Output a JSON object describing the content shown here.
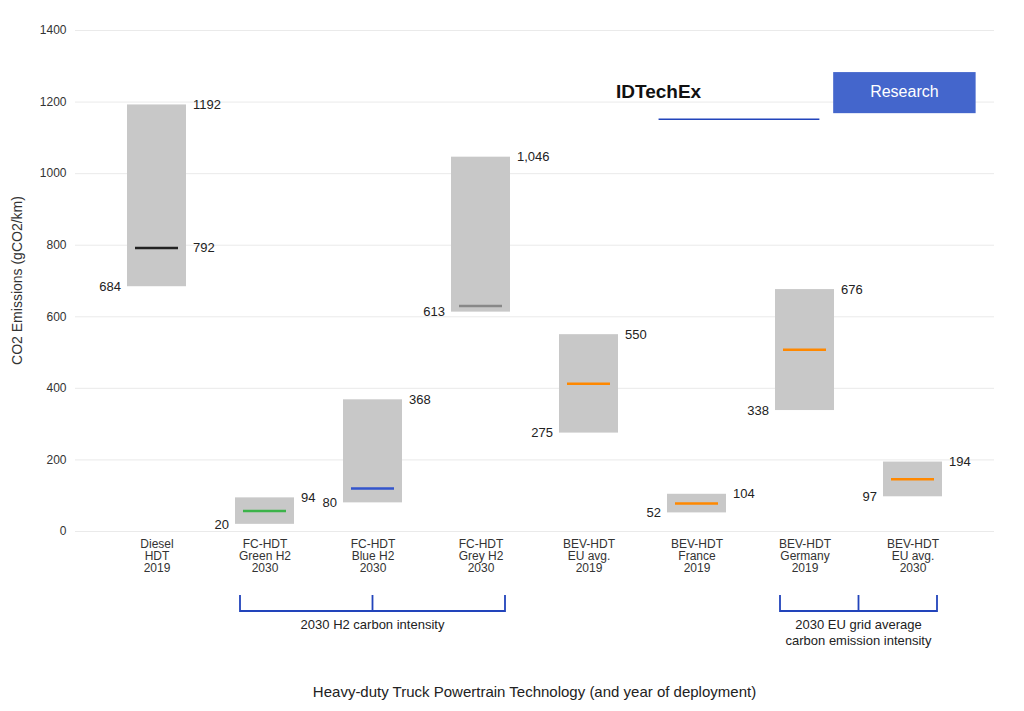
{
  "chart_data": {
    "type": "bar",
    "categories": [
      "Diesel\nHDT\n2019",
      "FC-HDT\nGreen H2\n2030",
      "FC-HDT\nBlue H2\n2030",
      "FC-HDT\nGrey H2\n2030",
      "BEV-HDT\nEU avg.\n2019",
      "BEV-HDT\nFrance\n2019",
      "BEV-HDT\nGermany\n2019",
      "BEV-HDT\nEU avg.\n2030"
    ],
    "bars": {
      "low": [
        684,
        20,
        80,
        613,
        275,
        52,
        338,
        97
      ],
      "high": [
        1192,
        94,
        368,
        1046,
        550,
        104,
        676,
        194
      ],
      "low_labels": [
        "684",
        "20",
        "80",
        "613",
        "275",
        "52",
        "338",
        "97"
      ],
      "high_labels": [
        "1192",
        "94",
        "368",
        "1,046",
        "550",
        "104",
        "676",
        "194"
      ],
      "color": "#c8c8c8"
    },
    "medians": {
      "values": [
        792,
        57,
        120,
        630,
        413,
        78,
        508,
        146
      ],
      "colors": [
        "#222222",
        "#3cb34a",
        "#3355cc",
        "#888888",
        "#ff8800",
        "#ff8800",
        "#ff8800",
        "#ff8800"
      ]
    },
    "ylim": [
      0,
      1400
    ],
    "yticks": [
      0,
      200,
      400,
      600,
      800,
      1000,
      1200,
      1400
    ],
    "grid": true,
    "ylabel": "CO2 Emissions (gCO2/km)",
    "xlabel": "Heavy-duty Truck Powertrain Technology (and year of deployment)",
    "annotations": [
      {
        "text": "792",
        "category": "Diesel\nHDT\n2019",
        "y": 792
      },
      {
        "type": "bracket",
        "text": "2030 H2 carbon intensity",
        "from": "FC-HDT\nGreen H2\n2030",
        "to": "FC-HDT\nGrey H2\n2030",
        "color": "#2244bb"
      },
      {
        "type": "bracket",
        "text": "2030 EU grid average\ncarbon emission intensity",
        "from": "BEV-HDT\nGermany\n2019",
        "to": "BEV-HDT\nEU avg.\n2030",
        "color": "#2244bb"
      }
    ],
    "logo": {
      "text": "IDTechEx",
      "badge": "Research",
      "color": "#4466cc",
      "underline_color": "#2244bb"
    }
  }
}
